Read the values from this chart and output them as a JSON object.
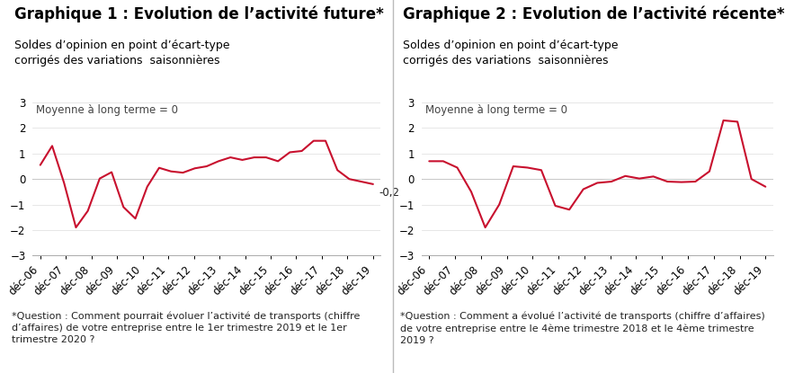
{
  "graph1": {
    "title": "Graphique 1 : Evolution de l’activité future*",
    "subtitle": "Soldes d’opinion en point d’écart-type\ncorrigés des variations  saisonnières",
    "mean_label": "Moyenne à long terme = 0",
    "annotation": "-0,2",
    "note": "*Question : Comment pourrait évoluer l’activité de transports (chiffre\nd’affaires) de votre entreprise entre le 1er trimestre 2019 et le 1er\ntrimestre 2020 ?",
    "x_labels": [
      "déc-06",
      "déc-07",
      "déc-08",
      "déc-09",
      "déc-10",
      "déc-11",
      "déc-12",
      "déc-13",
      "déc-14",
      "déc-15",
      "déc-16",
      "déc-17",
      "déc-18",
      "déc-19"
    ],
    "values": [
      0.55,
      1.3,
      -0.15,
      -1.9,
      -1.25,
      0.02,
      0.27,
      -1.1,
      -1.55,
      -0.3,
      0.44,
      0.3,
      0.25,
      0.42,
      0.5,
      0.7,
      0.85,
      0.75,
      0.85,
      0.85,
      0.7,
      1.05,
      1.1,
      1.5,
      1.5,
      0.35,
      0.0,
      -0.1,
      -0.2
    ],
    "ylim": [
      -3,
      3
    ],
    "yticks": [
      -3,
      -2,
      -1,
      0,
      1,
      2,
      3
    ],
    "color": "#c8102e"
  },
  "graph2": {
    "title": "Graphique 2 : Evolution de l’activité récente*",
    "subtitle": "Soldes d’opinion en point d’écart-type\ncorrigés des variations  saisonnières",
    "mean_label": "Moyenne à long terme = 0",
    "annotation": "",
    "note": "*Question : Comment a évolué l’activité de transports (chiffre d’affaires)\nde votre entreprise entre le 4ème trimestre 2018 et le 4ème trimestre\n2019 ?",
    "x_labels": [
      "déc-06",
      "déc-07",
      "déc-08",
      "déc-09",
      "déc-10",
      "déc-11",
      "déc-12",
      "déc-13",
      "déc-14",
      "déc-15",
      "déc-16",
      "déc-17",
      "déc-18",
      "déc-19"
    ],
    "values": [
      0.7,
      0.7,
      0.45,
      -0.5,
      -1.9,
      -1.0,
      0.5,
      0.45,
      0.35,
      -1.05,
      -1.2,
      -0.4,
      -0.15,
      -0.1,
      0.12,
      0.02,
      0.1,
      -0.1,
      -0.12,
      -0.1,
      0.3,
      2.3,
      2.25,
      0.0,
      -0.3
    ],
    "ylim": [
      -3,
      3
    ],
    "yticks": [
      -3,
      -2,
      -1,
      0,
      1,
      2,
      3
    ],
    "color": "#c8102e"
  },
  "bg_color": "#ffffff",
  "title_fontsize": 12,
  "subtitle_fontsize": 9,
  "tick_fontsize": 8.5,
  "note_fontsize": 8,
  "mean_fontsize": 8.5,
  "divider_color": "#bbbbbb"
}
